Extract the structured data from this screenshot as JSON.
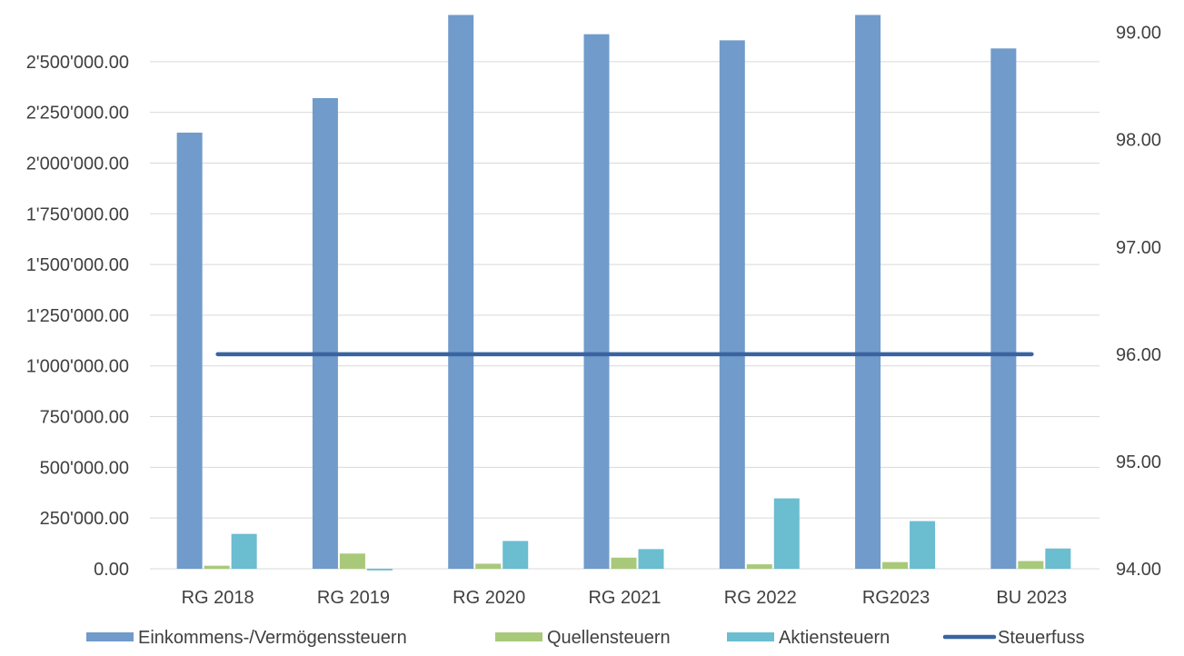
{
  "chart_data": {
    "type": "bar",
    "title": "",
    "xlabel": "",
    "ylabel": "",
    "categories": [
      "RG 2018",
      "RG 2019",
      "RG 2020",
      "RG 2021",
      "RG 2022",
      "RG2023",
      "BU 2023"
    ],
    "ylim": [
      0,
      2750000
    ],
    "y_ticks": [
      0,
      250000,
      500000,
      750000,
      1000000,
      1250000,
      1500000,
      1750000,
      2000000,
      2250000,
      2500000
    ],
    "y_tick_labels": [
      "0.00",
      "250'000.00",
      "500'000.00",
      "750'000.00",
      "1'000'000.00",
      "1'250'000.00",
      "1'500'000.00",
      "1'750'000.00",
      "2'000'000.00",
      "2'250'000.00",
      "2'500'000.00"
    ],
    "y2lim": [
      94,
      99.2
    ],
    "y2_ticks": [
      94,
      95,
      96,
      97,
      98,
      99
    ],
    "y2_tick_labels": [
      "94.00",
      "95.00",
      "96.00",
      "97.00",
      "98.00",
      "99.00"
    ],
    "grid": true,
    "legend_position": "bottom",
    "series": [
      {
        "name": "Einkommens-/Vermögenssteuern",
        "kind": "bar",
        "axis": "left",
        "color": "#709bcb",
        "values": [
          2150000,
          2320000,
          2730000,
          2635000,
          2605000,
          2730000,
          2565000
        ]
      },
      {
        "name": "Quellensteuern",
        "kind": "bar",
        "axis": "left",
        "color": "#a9c97a",
        "values": [
          15000,
          75000,
          25000,
          55000,
          22000,
          33000,
          38000
        ]
      },
      {
        "name": "Aktiensteuern",
        "kind": "bar",
        "axis": "left",
        "color": "#6bbdd0",
        "values": [
          172000,
          -8000,
          137000,
          97000,
          347000,
          235000,
          100000
        ]
      },
      {
        "name": "Steuerfuss",
        "kind": "line",
        "axis": "right",
        "color": "#3a64a0",
        "values": [
          96,
          96,
          96,
          96,
          96,
          96,
          96
        ]
      }
    ]
  }
}
